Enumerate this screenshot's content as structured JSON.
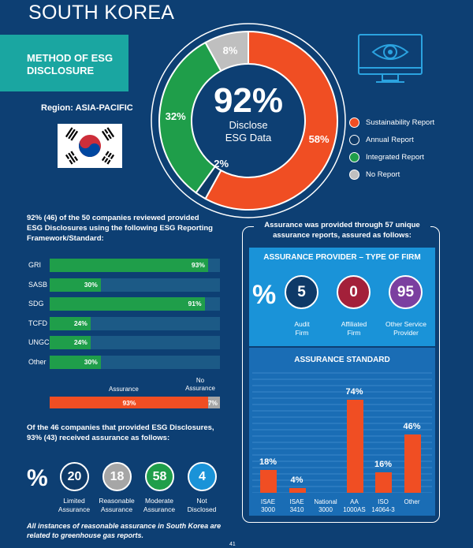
{
  "page_title": "SOUTH KOREA",
  "method_title": "METHOD OF ESG DISCLOSURE",
  "region": "Region: ASIA-PACIFIC",
  "colors": {
    "sustainability": "#f04e23",
    "annual": "#0e3a68",
    "integrated": "#1f9e4a",
    "none": "#bfbfbf",
    "accent_box": "#1aa6a1"
  },
  "donut": {
    "center_value": "92%",
    "center_label_1": "Disclose",
    "center_label_2": "ESG Data",
    "slices": [
      {
        "name": "Sustainability Report",
        "value": 58,
        "label": "58%",
        "color": "#f04e23"
      },
      {
        "name": "Annual Report",
        "value": 2,
        "label": "2%",
        "color": "#0e3a68"
      },
      {
        "name": "Integrated Report",
        "value": 32,
        "label": "32%",
        "color": "#1f9e4a"
      },
      {
        "name": "No Report",
        "value": 8,
        "label": "8%",
        "color": "#bfbfbf"
      }
    ]
  },
  "legend": [
    "Sustainability Report",
    "Annual Report",
    "Integrated Report",
    "No Report"
  ],
  "intro_text": "92% (46) of the 50 companies reviewed provided ESG Disclosures using the following ESG Reporting Framework/Standard:",
  "chart_data": [
    {
      "type": "bar",
      "categories": [
        "GRI",
        "SASB",
        "SDG",
        "TCFD",
        "UNGC",
        "Other"
      ],
      "values": [
        93,
        30,
        91,
        24,
        24,
        30
      ],
      "labels": [
        "93%",
        "30%",
        "91%",
        "24%",
        "24%",
        "30%"
      ],
      "ylim": [
        0,
        100
      ]
    },
    {
      "type": "bar",
      "categories": [
        "Assurance",
        "No Assurance"
      ],
      "values": [
        93,
        7
      ],
      "labels": [
        "93%",
        "7%"
      ]
    },
    {
      "type": "bar",
      "title": "ASSURANCE STANDARD",
      "categories": [
        "ISAE 3000",
        "ISAE 3410",
        "National 3000",
        "AA 1000AS",
        "ISO 14064-3",
        "Other"
      ],
      "values": [
        18,
        4,
        0,
        74,
        16,
        46
      ],
      "labels": [
        "18%",
        "4%",
        "",
        "74%",
        "16%",
        "46%"
      ],
      "ylim": [
        0,
        100
      ]
    }
  ],
  "assurance_labels": {
    "yes": "Assurance",
    "no_1": "No",
    "no_2": "Assurance"
  },
  "assurance_text": "Of the 46 companies that provided ESG Disclosures, 93% (43) received assurance as follows:",
  "pct_sign": "%",
  "assurance_types": [
    {
      "value": "20",
      "label_1": "Limited",
      "label_2": "Assurance",
      "color": "#0e3a68"
    },
    {
      "value": "18",
      "label_1": "Reasonable",
      "label_2": "Assurance",
      "color": "#a6a6a6"
    },
    {
      "value": "58",
      "label_1": "Moderate",
      "label_2": "Assurance",
      "color": "#1f9e4a"
    },
    {
      "value": "4",
      "label_1": "Not",
      "label_2": "Disclosed",
      "color": "#1a93d8"
    }
  ],
  "footnote": "All instances of reasonable assurance in South Korea are related to greenhouse gas reports.",
  "right_intro": "Assurance was provided through 57 unique assurance reports, assured as follows:",
  "provider_title": "ASSURANCE PROVIDER – TYPE OF FIRM",
  "providers": [
    {
      "value": "5",
      "label_1": "Audit",
      "label_2": "Firm",
      "color": "#0e3a68"
    },
    {
      "value": "0",
      "label_1": "Affiliated",
      "label_2": "Firm",
      "color": "#a3203a"
    },
    {
      "value": "95",
      "label_1": "Other Service",
      "label_2": "Provider",
      "color": "#7b3fa0"
    }
  ],
  "std_cats": [
    {
      "l1": "ISAE",
      "l2": "3000"
    },
    {
      "l1": "ISAE",
      "l2": "3410"
    },
    {
      "l1": "National",
      "l2": "3000"
    },
    {
      "l1": "AA",
      "l2": "1000AS"
    },
    {
      "l1": "ISO",
      "l2": "14064-3"
    },
    {
      "l1": "Other",
      "l2": ""
    }
  ],
  "page_number": "41"
}
